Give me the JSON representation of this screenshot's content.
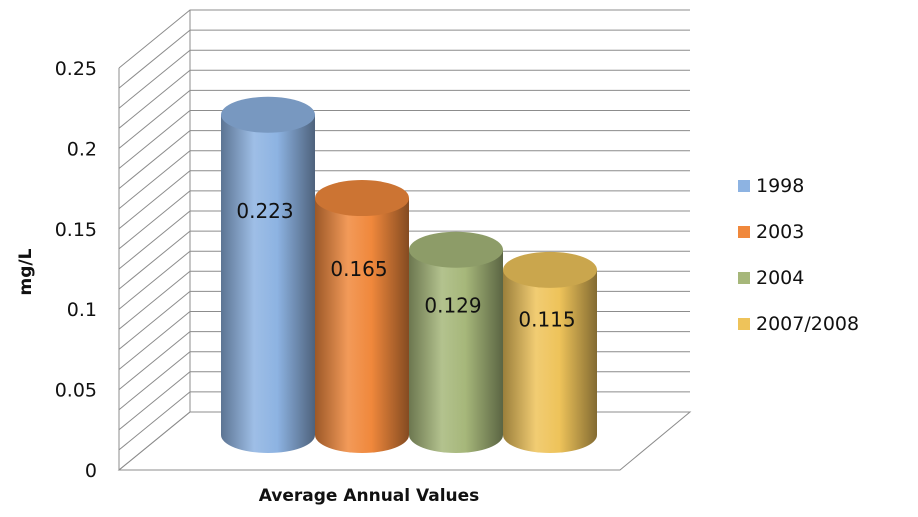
{
  "chart_data": {
    "type": "bar",
    "style": "3d-cylinder",
    "categories": [
      "Average Annual Values"
    ],
    "series": [
      {
        "name": "1998",
        "values": [
          0.223
        ],
        "color": "#8db3e2",
        "label": "0.223"
      },
      {
        "name": "2003",
        "values": [
          0.165
        ],
        "color": "#f0883c",
        "label": "0.165"
      },
      {
        "name": "2004",
        "values": [
          0.129
        ],
        "color": "#a6b77a",
        "label": "0.129"
      },
      {
        "name": "2007/2008",
        "values": [
          0.115
        ],
        "color": "#eec35a",
        "label": "0.115"
      }
    ],
    "xlabel": "Average Annual Values",
    "ylabel": "mg/L",
    "ylim": [
      0,
      0.25
    ],
    "yticks": [
      "0",
      "0.05",
      "0.1",
      "0.15",
      "0.2",
      "0.25"
    ],
    "grid": true,
    "legend": "right"
  }
}
